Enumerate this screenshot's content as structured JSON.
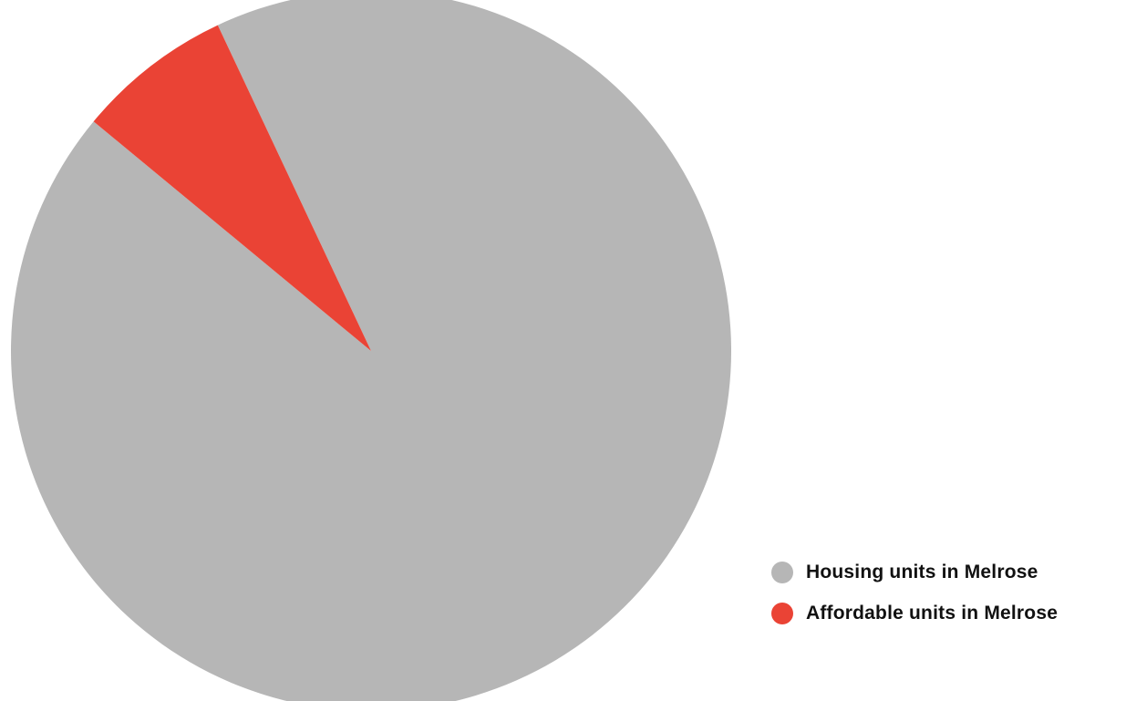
{
  "chart_data": {
    "type": "pie",
    "title": "",
    "slices": [
      {
        "label": "Housing units in Melrose",
        "value": 93,
        "color": "#b6b6b6"
      },
      {
        "label": "Affordable units in Melrose",
        "value": 7,
        "color": "#ea4335"
      }
    ],
    "start_angle_deg": -25.2,
    "direction": "clockwise",
    "legend_position": "bottom-right"
  }
}
